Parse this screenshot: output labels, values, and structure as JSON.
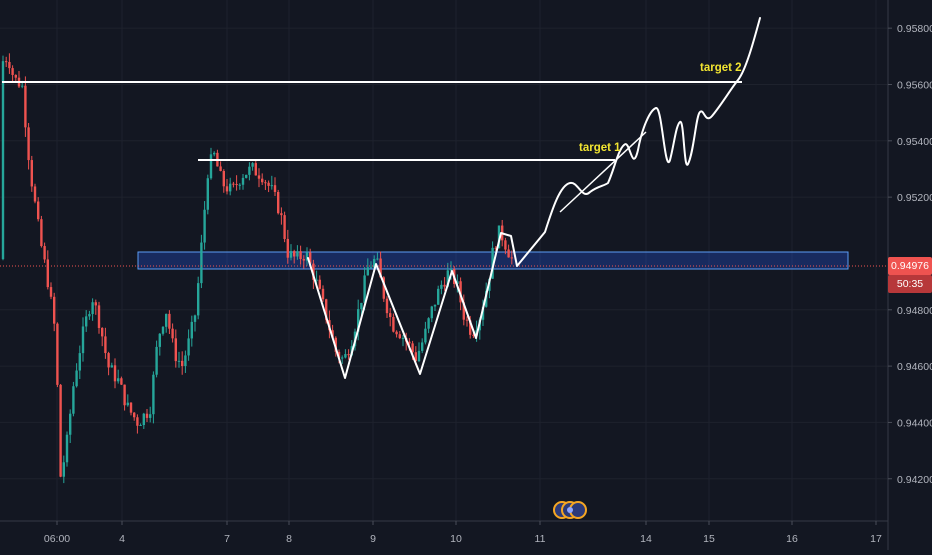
{
  "chart_data": {
    "type": "candlestick",
    "y_axis_labels": [
      "0.95800",
      "0.95600",
      "0.95400",
      "0.95200",
      "0.94800",
      "0.94600",
      "0.94400",
      "0.94200"
    ],
    "x_axis_labels": [
      "06:00",
      "4",
      "7",
      "8",
      "9",
      "10",
      "11",
      "14",
      "15",
      "16",
      "17"
    ],
    "ylim": [
      0.9405,
      0.959
    ],
    "last_price": "0.94976",
    "countdown": "50:35",
    "annotations": {
      "target_1": "target 1",
      "target_2": "target 2"
    },
    "colors": {
      "background": "#131722",
      "up": "#26a69a",
      "down": "#ef5350",
      "drawing": "#ffffff",
      "zone_fill": "#2962ff",
      "zone_border": "#5b9cf6",
      "label": "#f2e531",
      "axis_text": "#b2b5be"
    }
  }
}
